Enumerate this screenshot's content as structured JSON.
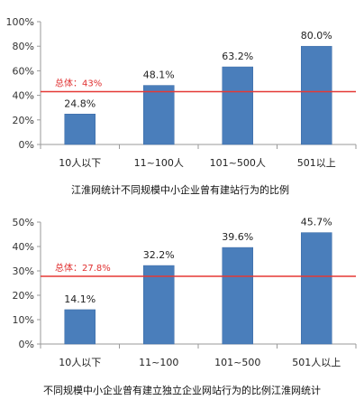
{
  "chart_data": [
    {
      "type": "bar",
      "categories": [
        "10人以下",
        "11~100人",
        "101~500人",
        "501以上"
      ],
      "values": [
        24.8,
        48.1,
        63.2,
        80.0
      ],
      "value_labels": [
        "24.8%",
        "48.1%",
        "63.2%",
        "80.0%"
      ],
      "ylim": [
        0,
        100
      ],
      "yticks": [
        "0%",
        "20%",
        "40%",
        "60%",
        "80%",
        "100%"
      ],
      "reference_line": {
        "value": 43,
        "label": "总体：43%",
        "color": "#e53935"
      },
      "caption": "江淮网统计不同规模中小企业曾有建站行为的比例",
      "bar_color": "#4a7ebb",
      "grid": false
    },
    {
      "type": "bar",
      "categories": [
        "10人以下",
        "11~100",
        "101~500",
        "501人以上"
      ],
      "values": [
        14.1,
        32.2,
        39.6,
        45.7
      ],
      "value_labels": [
        "14.1%",
        "32.2%",
        "39.6%",
        "45.7%"
      ],
      "ylim": [
        0,
        50
      ],
      "yticks": [
        "0%",
        "10%",
        "20%",
        "30%",
        "40%",
        "50%"
      ],
      "reference_line": {
        "value": 27.8,
        "label": "总体：27.8%",
        "color": "#e53935"
      },
      "caption": "不同规模中小企业曾有建立独立企业网站行为的比例江淮网统计",
      "bar_color": "#4a7ebb",
      "grid": false
    }
  ]
}
